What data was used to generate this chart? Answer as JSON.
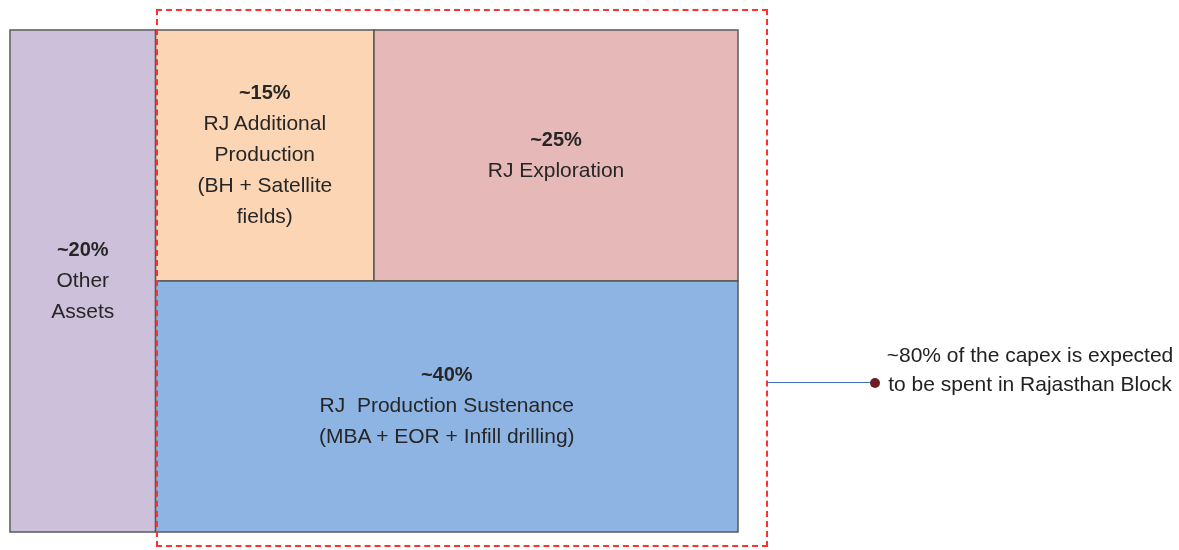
{
  "chart_data": {
    "type": "other",
    "categories": [
      "Other\nAssets",
      "RJ Additional\nProduction\n(BH + Satellite\nfields)",
      "RJ Exploration",
      "RJ  Production Sustenance\n(MBA + EOR + Infill drilling)"
    ],
    "values": [
      20,
      15,
      25,
      40
    ],
    "value_labels": [
      "~20%",
      "~15%",
      "~25%",
      "~40%"
    ],
    "colors": [
      "#ccc0da",
      "#fcd5b5",
      "#e6b9b8",
      "#8eb4e3"
    ],
    "annotations": [
      "~80% of the capex is expected to be spent in Rajasthan Block"
    ]
  }
}
